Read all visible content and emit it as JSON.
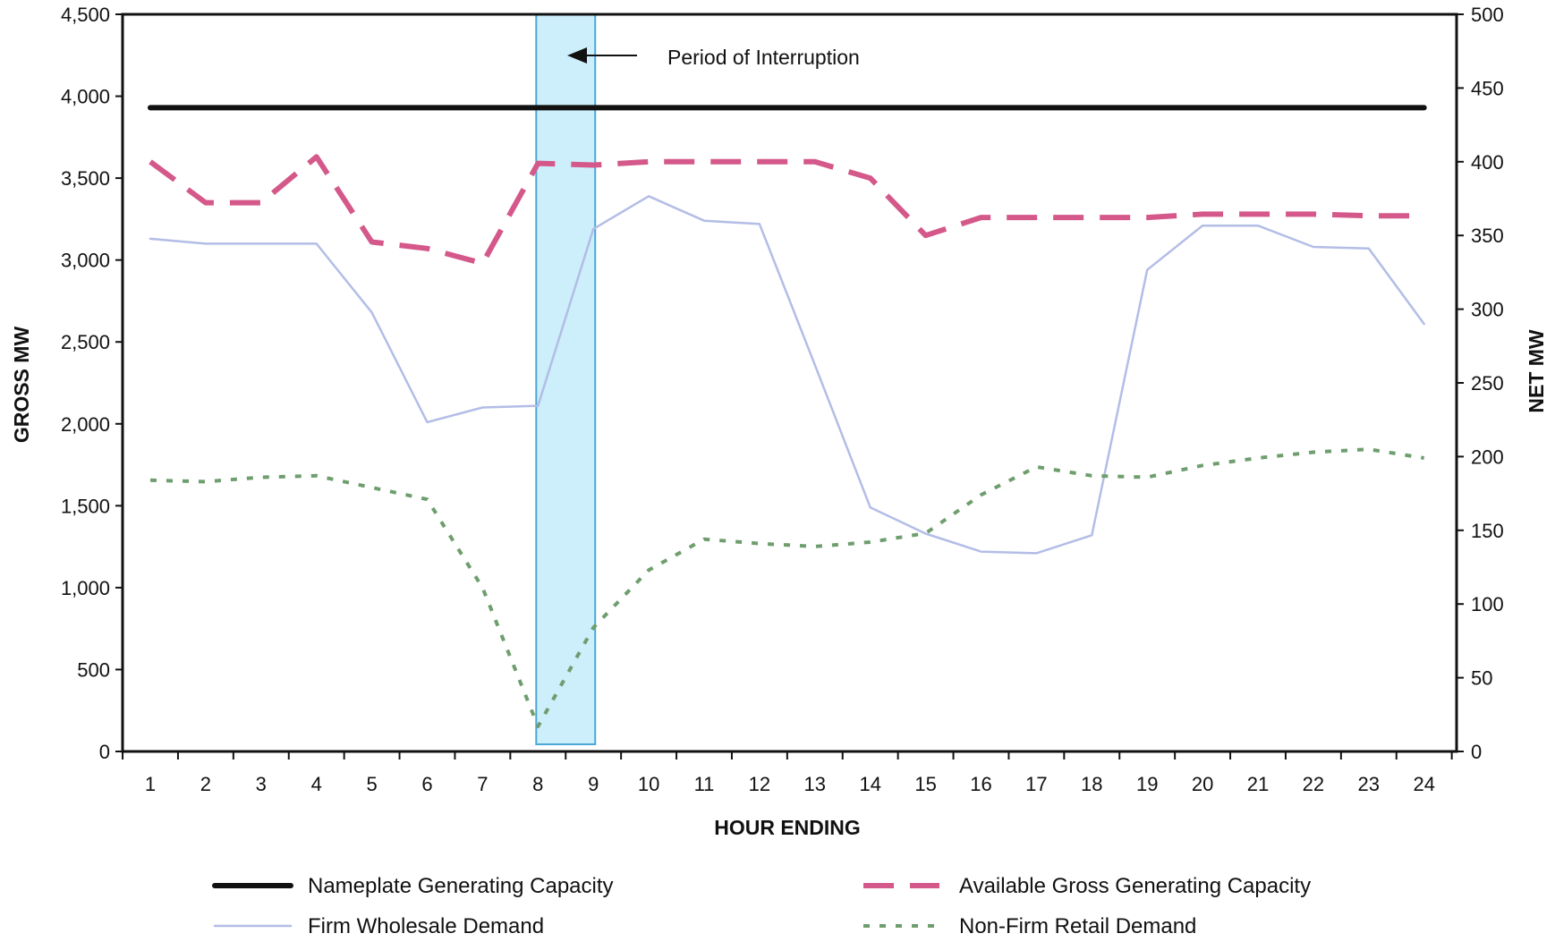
{
  "chart_data": {
    "type": "line",
    "title": "",
    "xlabel": "HOUR ENDING",
    "ylabel": "GROSS MW",
    "y2label": "NET MW",
    "x": [
      1,
      2,
      3,
      4,
      5,
      6,
      7,
      8,
      9,
      10,
      11,
      12,
      13,
      14,
      15,
      16,
      17,
      18,
      19,
      20,
      21,
      22,
      23,
      24
    ],
    "x_ticks": [
      "1",
      "2",
      "3",
      "4",
      "5",
      "6",
      "7",
      "8",
      "9",
      "10",
      "11",
      "12",
      "13",
      "14",
      "15",
      "16",
      "17",
      "18",
      "19",
      "20",
      "21",
      "22",
      "23",
      "24"
    ],
    "ylim": [
      0,
      4500
    ],
    "y_ticks": [
      "0",
      "500",
      "1,000",
      "1,500",
      "2,000",
      "2,500",
      "3,000",
      "3,500",
      "4,000",
      "4,500"
    ],
    "y_tick_values": [
      0,
      500,
      1000,
      1500,
      2000,
      2500,
      3000,
      3500,
      4000,
      4500
    ],
    "y2lim": [
      0,
      500
    ],
    "y2_ticks": [
      "0",
      "50",
      "100",
      "150",
      "200",
      "250",
      "300",
      "350",
      "400",
      "450",
      "500"
    ],
    "y2_tick_values": [
      0,
      50,
      100,
      150,
      200,
      250,
      300,
      350,
      400,
      450,
      500
    ],
    "grid": false,
    "legend_position": "bottom",
    "series": [
      {
        "name": "Nameplate Generating Capacity",
        "axis": "left",
        "style": "solid-thick",
        "color": "#111111",
        "values": [
          3930,
          3930,
          3930,
          3930,
          3930,
          3930,
          3930,
          3930,
          3930,
          3930,
          3930,
          3930,
          3930,
          3930,
          3930,
          3930,
          3930,
          3930,
          3930,
          3930,
          3930,
          3930,
          3930,
          3930
        ]
      },
      {
        "name": "Available Gross Generating Capacity",
        "axis": "left",
        "style": "dashed-thick",
        "color": "#d4588a",
        "values": [
          3600,
          3350,
          3350,
          3630,
          3110,
          3070,
          2980,
          3590,
          3580,
          3600,
          3600,
          3600,
          3600,
          3500,
          3150,
          3260,
          3260,
          3260,
          3260,
          3280,
          3280,
          3280,
          3270,
          3270
        ]
      },
      {
        "name": "Firm Wholesale Demand",
        "axis": "left",
        "style": "solid-thin",
        "color": "#b3bde6",
        "values": [
          3130,
          3100,
          3100,
          3100,
          2680,
          2010,
          2100,
          2110,
          3190,
          3390,
          3240,
          3220,
          2360,
          1490,
          1330,
          1220,
          1210,
          1320,
          2940,
          3210,
          3210,
          3080,
          3070,
          2610
        ]
      },
      {
        "name": "Non-Firm Retail Demand",
        "axis": "right",
        "style": "dotted",
        "color": "#6e9e6e",
        "values": [
          184,
          183,
          186,
          187,
          179,
          171,
          111,
          17,
          84,
          123,
          144,
          141,
          139,
          142,
          148,
          174,
          193,
          187,
          186,
          194,
          199,
          203,
          205,
          199
        ]
      }
    ],
    "annotations": [
      {
        "text": "Period of Interruption",
        "x_start": 8,
        "x_end": 9,
        "fill": "#cdeefb",
        "stroke": "#4aa8d8"
      }
    ]
  }
}
